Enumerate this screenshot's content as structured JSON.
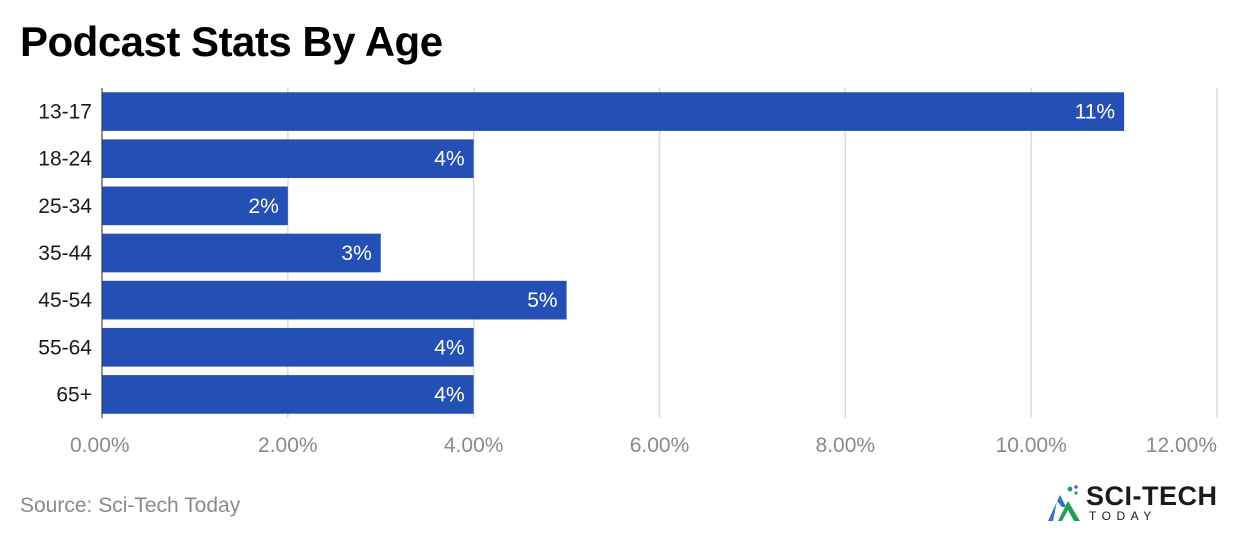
{
  "chart_data": {
    "type": "bar",
    "orientation": "horizontal",
    "title": "Podcast Stats By Age",
    "categories": [
      "13-17",
      "18-24",
      "25-34",
      "35-44",
      "45-54",
      "55-64",
      "65+"
    ],
    "values": [
      11,
      4,
      2,
      3,
      5,
      4,
      4
    ],
    "data_labels": [
      "11%",
      "4%",
      "2%",
      "3%",
      "5%",
      "4%",
      "4%"
    ],
    "xlim": [
      0,
      12
    ],
    "xticks": [
      0,
      2,
      4,
      6,
      8,
      10,
      12
    ],
    "xtick_labels": [
      "0.00%",
      "2.00%",
      "4.00%",
      "6.00%",
      "8.00%",
      "10.00%",
      "12.00%"
    ],
    "xlabel": "",
    "ylabel": "",
    "grid": true,
    "bar_color": "#2450b5",
    "grid_color": "#dcdcdc",
    "tick_label_color": "#8a8a8a"
  },
  "source": "Source: Sci-Tech Today",
  "logo": {
    "main": "SCI-TECH",
    "sub": "TODAY",
    "icon": "mountain-logo-icon"
  }
}
